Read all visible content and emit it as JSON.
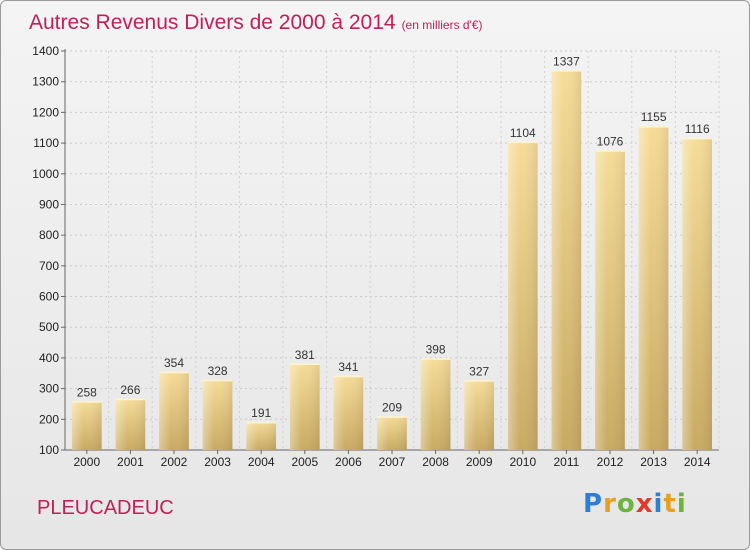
{
  "title": "Autres Revenus Divers de 2000 à 2014",
  "title_unit": "(en milliers d'€)",
  "place_name": "PLEUCADEUC",
  "logo_text": "Proxiti",
  "chart_data": {
    "type": "bar",
    "title": "Autres Revenus Divers de 2000 à 2014",
    "subtitle": "(en milliers d'€)",
    "xlabel": "",
    "ylabel": "",
    "categories": [
      "2000",
      "2001",
      "2002",
      "2003",
      "2004",
      "2005",
      "2006",
      "2007",
      "2008",
      "2009",
      "2010",
      "2011",
      "2012",
      "2013",
      "2014"
    ],
    "values": [
      258,
      266,
      354,
      328,
      191,
      381,
      341,
      209,
      398,
      327,
      1104,
      1337,
      1076,
      1155,
      1116
    ],
    "ylim": [
      100,
      1400
    ],
    "yticks": [
      100,
      200,
      300,
      400,
      500,
      600,
      700,
      800,
      900,
      1000,
      1100,
      1200,
      1300,
      1400
    ],
    "grid": true,
    "bar_color": "#e8cc8a",
    "title_color": "#c0205a"
  }
}
